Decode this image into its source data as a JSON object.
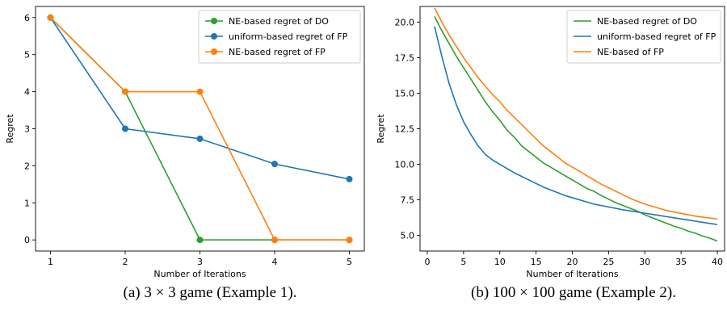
{
  "captions": {
    "a": "(a) 3 × 3 game (Example 1).",
    "b": "(b) 100 × 100 game (Example 2)."
  },
  "chart_data": [
    {
      "type": "line",
      "xlabel": "Number of Iterations",
      "ylabel": "Regret",
      "xlim": [
        0.8,
        5.2
      ],
      "ylim": [
        -0.3,
        6.3
      ],
      "xticks": [
        1,
        2,
        3,
        4,
        5
      ],
      "yticks": [
        0,
        1,
        2,
        3,
        4,
        5,
        6
      ],
      "legend": "top-right",
      "markers": true,
      "x": [
        1,
        2,
        3,
        4,
        5
      ],
      "series": [
        {
          "name": "NE-based regret of DO",
          "color": "#2ca02c",
          "values": [
            6,
            4,
            0,
            0,
            0
          ]
        },
        {
          "name": "uniform-based regret of FP",
          "color": "#1f77b4",
          "values": [
            6,
            3,
            2.73,
            2.05,
            1.64
          ]
        },
        {
          "name": "NE-based regret of FP",
          "color": "#ff7f0e",
          "values": [
            6,
            4,
            4,
            0,
            0
          ]
        }
      ]
    },
    {
      "type": "line",
      "xlabel": "Number of Iterations",
      "ylabel": "Regret",
      "xlim": [
        -1,
        41
      ],
      "ylim": [
        3.9,
        21.1
      ],
      "xticks": [
        0,
        5,
        10,
        15,
        20,
        25,
        30,
        35,
        40
      ],
      "yticks": [
        5.0,
        7.5,
        10.0,
        12.5,
        15.0,
        17.5,
        20.0
      ],
      "ytick_decimals": 1,
      "legend": "top-right",
      "markers": false,
      "x": [
        1,
        2,
        3,
        4,
        5,
        6,
        7,
        8,
        9,
        10,
        11,
        12,
        13,
        14,
        15,
        16,
        17,
        18,
        19,
        20,
        21,
        22,
        23,
        24,
        25,
        26,
        27,
        28,
        29,
        30,
        31,
        32,
        33,
        34,
        35,
        36,
        37,
        38,
        39,
        40
      ],
      "series": [
        {
          "name": "NE-based regret of DO",
          "color": "#2ca02c",
          "values": [
            20.4,
            19.4,
            18.5,
            17.6,
            16.8,
            16.0,
            15.2,
            14.4,
            13.7,
            13.1,
            12.4,
            11.9,
            11.3,
            10.9,
            10.5,
            10.1,
            9.8,
            9.5,
            9.2,
            8.9,
            8.6,
            8.3,
            8.1,
            7.8,
            7.55,
            7.3,
            7.1,
            6.9,
            6.7,
            6.45,
            6.25,
            6.05,
            5.85,
            5.65,
            5.5,
            5.3,
            5.15,
            4.95,
            4.8,
            4.6
          ]
        },
        {
          "name": "uniform-based regret of FP",
          "color": "#1f77b4",
          "values": [
            19.7,
            17.6,
            15.7,
            14.2,
            13.0,
            12.1,
            11.3,
            10.7,
            10.3,
            10.0,
            9.7,
            9.4,
            9.15,
            8.9,
            8.65,
            8.4,
            8.2,
            8.0,
            7.8,
            7.65,
            7.5,
            7.35,
            7.2,
            7.1,
            7.0,
            6.9,
            6.8,
            6.72,
            6.64,
            6.56,
            6.48,
            6.4,
            6.32,
            6.24,
            6.16,
            6.08,
            6.0,
            5.92,
            5.84,
            5.76
          ]
        },
        {
          "name": "NE-based of FP",
          "color": "#ff7f0e",
          "values": [
            21.0,
            20.0,
            19.1,
            18.3,
            17.5,
            16.8,
            16.1,
            15.5,
            14.9,
            14.4,
            13.8,
            13.3,
            12.8,
            12.3,
            11.8,
            11.3,
            10.9,
            10.5,
            10.1,
            9.8,
            9.5,
            9.2,
            8.9,
            8.6,
            8.35,
            8.1,
            7.85,
            7.6,
            7.4,
            7.2,
            7.05,
            6.9,
            6.75,
            6.65,
            6.55,
            6.45,
            6.35,
            6.28,
            6.22,
            6.15
          ]
        }
      ]
    }
  ]
}
